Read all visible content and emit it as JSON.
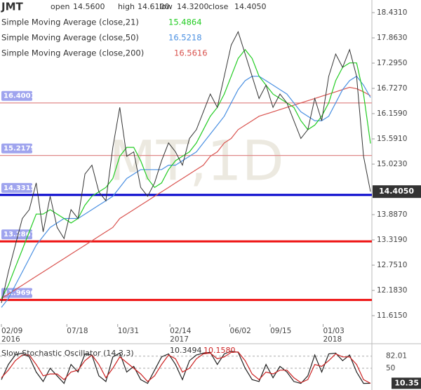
{
  "header": {
    "symbol": "JMT",
    "open_label": "open",
    "open": "14.5600",
    "high_label": "high",
    "high": "14.6100",
    "low_label": "low",
    "low": "14.3200",
    "close_label": "close",
    "close": "14.4050"
  },
  "chart_data": [
    {
      "type": "line",
      "watermark": "MT,1D",
      "ylim": [
        11.426,
        18.715
      ],
      "yticks": [
        {
          "value": 18.431,
          "label": "18.4310"
        },
        {
          "value": 17.863,
          "label": "17.8630"
        },
        {
          "value": 17.295,
          "label": "17.2950"
        },
        {
          "value": 16.727,
          "label": "16.7270"
        },
        {
          "value": 16.159,
          "label": "16.1590"
        },
        {
          "value": 15.591,
          "label": "15.5910"
        },
        {
          "value": 15.023,
          "label": "15.0230"
        },
        {
          "value": 13.887,
          "label": "13.8870"
        },
        {
          "value": 13.319,
          "label": "13.3190"
        },
        {
          "value": 12.751,
          "label": "12.7510"
        },
        {
          "value": 12.183,
          "label": "12.1830"
        },
        {
          "value": 11.615,
          "label": "11.6150"
        }
      ],
      "xlim": [
        0,
        53
      ],
      "xticks": [
        {
          "value": 0,
          "label": "02/09"
        },
        {
          "value": 9.4,
          "label": "07/18"
        },
        {
          "value": 16.7,
          "label": "10/31"
        },
        {
          "value": 24.2,
          "label": "02/14"
        },
        {
          "value": 32.8,
          "label": "06/02"
        },
        {
          "value": 38.6,
          "label": "09/15"
        },
        {
          "value": 46.2,
          "label": "01/03"
        }
      ],
      "xyears": [
        {
          "value": 0,
          "label": "2016"
        },
        {
          "value": 24.2,
          "label": "2017"
        },
        {
          "value": 46.2,
          "label": "2018"
        }
      ],
      "grid": false,
      "series": [
        {
          "name": "JMT",
          "color": "#333333",
          "values": [
            11.9,
            12.6,
            13.2,
            13.8,
            14.0,
            14.6,
            13.5,
            14.3,
            13.6,
            13.35,
            14.0,
            13.8,
            14.8,
            15.0,
            14.4,
            14.2,
            15.4,
            16.3,
            15.2,
            15.3,
            14.5,
            14.3,
            14.6,
            15.1,
            15.5,
            15.3,
            15.0,
            15.6,
            15.8,
            16.2,
            16.6,
            16.3,
            17.0,
            17.7,
            18.0,
            17.5,
            17.0,
            16.5,
            16.8,
            16.3,
            16.6,
            16.4,
            16.0,
            15.6,
            15.8,
            16.5,
            16.0,
            17.0,
            17.5,
            17.2,
            17.6,
            17.0,
            15.2,
            14.405
          ]
        },
        {
          "name": "Simple Moving Average (close,21)",
          "color": "#22cc22",
          "last_label": "15.4864",
          "values": [
            12.0,
            12.3,
            12.7,
            13.1,
            13.5,
            13.9,
            13.9,
            14.0,
            13.9,
            13.8,
            13.7,
            13.8,
            14.1,
            14.3,
            14.4,
            14.5,
            14.7,
            15.2,
            15.4,
            15.4,
            15.1,
            14.7,
            14.5,
            14.6,
            14.9,
            15.1,
            15.2,
            15.3,
            15.5,
            15.8,
            16.1,
            16.3,
            16.6,
            17.0,
            17.4,
            17.6,
            17.4,
            17.0,
            16.8,
            16.6,
            16.5,
            16.4,
            16.3,
            16.0,
            15.8,
            15.9,
            16.1,
            16.4,
            16.9,
            17.2,
            17.3,
            17.3,
            16.6,
            15.4864
          ]
        },
        {
          "name": "Simple Moving Average (close,50)",
          "color": "#4a90e2",
          "last_label": "16.5218",
          "values": [
            11.8,
            12.0,
            12.3,
            12.6,
            12.9,
            13.2,
            13.4,
            13.6,
            13.7,
            13.8,
            13.8,
            13.8,
            13.9,
            14.0,
            14.1,
            14.2,
            14.3,
            14.5,
            14.7,
            14.8,
            14.9,
            14.9,
            14.9,
            14.9,
            15.0,
            15.0,
            15.1,
            15.2,
            15.3,
            15.5,
            15.7,
            15.9,
            16.1,
            16.4,
            16.7,
            16.9,
            17.0,
            17.0,
            16.9,
            16.8,
            16.7,
            16.6,
            16.4,
            16.2,
            16.1,
            16.0,
            16.0,
            16.1,
            16.4,
            16.7,
            16.9,
            17.0,
            16.8,
            16.5218
          ]
        },
        {
          "name": "Simple Moving Average (close,200)",
          "color": "#d9534f",
          "last_label": "16.5616",
          "values": [
            12.0,
            12.1,
            12.2,
            12.3,
            12.4,
            12.5,
            12.6,
            12.7,
            12.8,
            12.9,
            13.0,
            13.1,
            13.2,
            13.3,
            13.4,
            13.5,
            13.6,
            13.8,
            13.9,
            14.0,
            14.1,
            14.2,
            14.3,
            14.4,
            14.5,
            14.6,
            14.7,
            14.8,
            14.9,
            15.0,
            15.2,
            15.3,
            15.5,
            15.6,
            15.8,
            15.9,
            16.0,
            16.1,
            16.15,
            16.2,
            16.25,
            16.3,
            16.35,
            16.4,
            16.45,
            16.5,
            16.55,
            16.6,
            16.65,
            16.7,
            16.75,
            16.72,
            16.65,
            16.5616
          ]
        }
      ],
      "levels": [
        {
          "value": 16.4001,
          "color": "#e08a8a",
          "style": "thin"
        },
        {
          "value": 15.2179,
          "color": "#e08a8a",
          "style": "thin"
        },
        {
          "value": 14.3315,
          "color": "#0000cc",
          "style": "thick"
        },
        {
          "value": 13.2867,
          "color": "#ee1111",
          "style": "thick"
        },
        {
          "value": 11.969,
          "label": "11.9690",
          "color": "#ee1111",
          "style": "thick"
        }
      ]
    },
    {
      "type": "line",
      "title": "Slow Stochastic Oscillator (14,3,3)",
      "ylim": [
        0,
        100
      ],
      "yticks": [
        82.01,
        50
      ],
      "xlim": [
        0,
        53
      ],
      "series": [
        {
          "name": "%K",
          "color": "#222222",
          "last_label": "10.3494",
          "values": [
            20,
            60,
            85,
            90,
            80,
            40,
            15,
            50,
            30,
            10,
            60,
            40,
            88,
            85,
            30,
            15,
            80,
            90,
            40,
            55,
            20,
            10,
            45,
            80,
            88,
            60,
            20,
            70,
            85,
            90,
            92,
            60,
            88,
            95,
            92,
            50,
            20,
            15,
            60,
            25,
            55,
            40,
            15,
            10,
            30,
            85,
            40,
            88,
            90,
            70,
            85,
            40,
            10,
            10.3494
          ]
        },
        {
          "name": "%D",
          "color": "#cc2222",
          "last_label": "10.1580",
          "values": [
            25,
            45,
            70,
            85,
            85,
            60,
            30,
            35,
            35,
            20,
            40,
            45,
            70,
            85,
            60,
            25,
            50,
            80,
            65,
            50,
            35,
            15,
            30,
            60,
            85,
            75,
            40,
            50,
            75,
            88,
            90,
            75,
            80,
            92,
            93,
            70,
            35,
            20,
            40,
            35,
            45,
            45,
            25,
            12,
            20,
            60,
            55,
            70,
            88,
            80,
            80,
            60,
            20,
            10.158
          ]
        }
      ],
      "last_value_label": "10.35"
    }
  ]
}
